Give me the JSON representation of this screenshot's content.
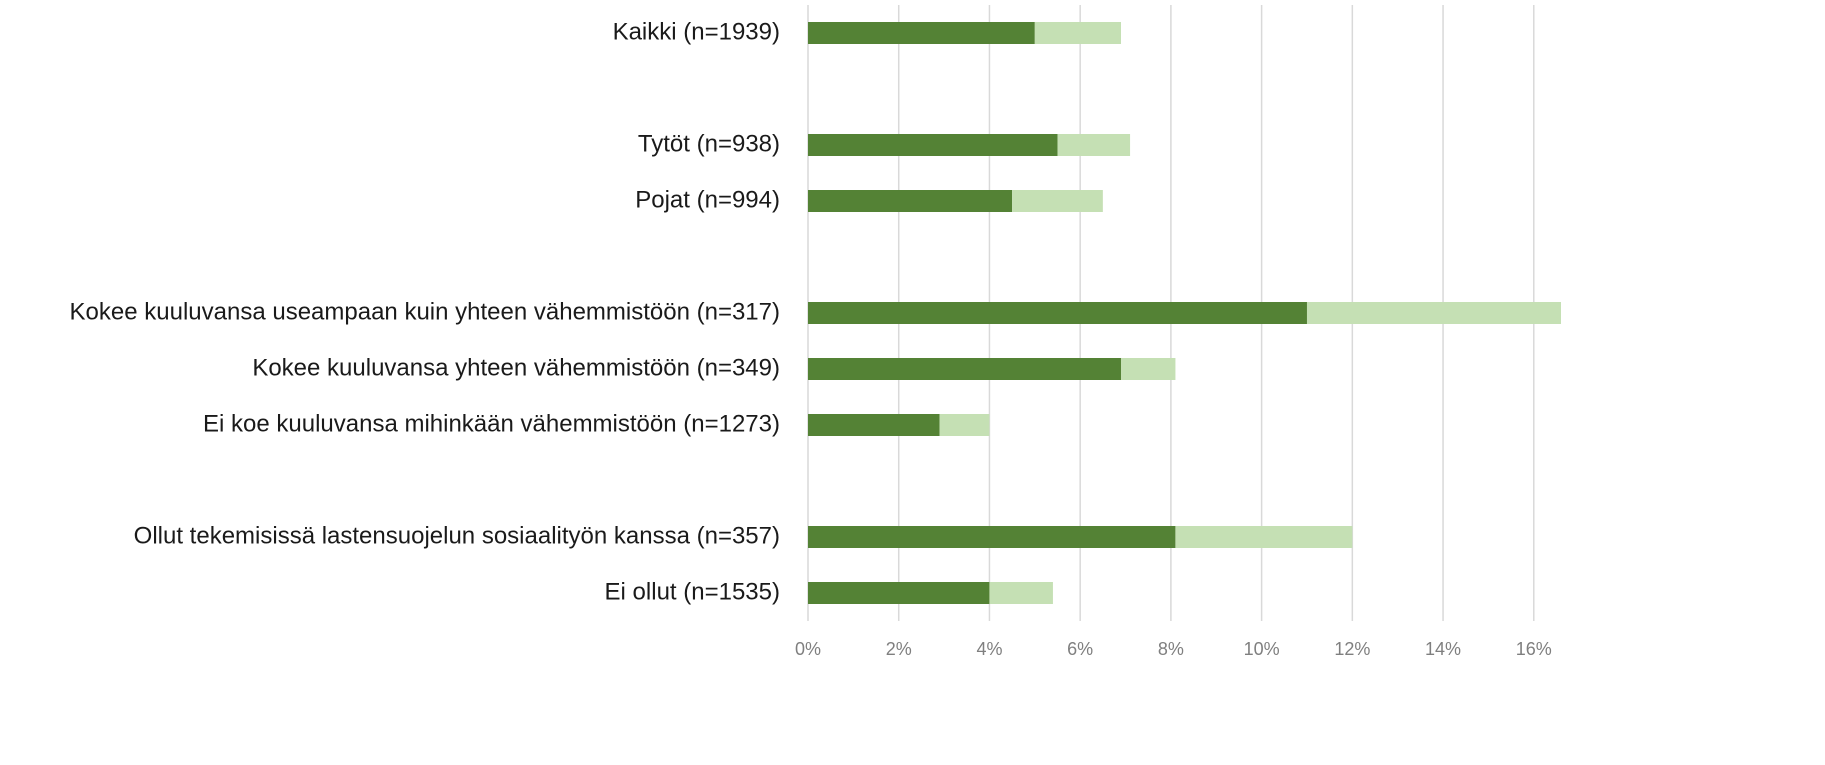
{
  "chart_data": {
    "type": "stacked-barh",
    "categories": [
      "Kaikki (n=1939)",
      null,
      "Tytöt (n=938)",
      "Pojat (n=994)",
      null,
      "Kokee kuuluvansa useampaan kuin yhteen vähemmistöön (n=317)",
      "Kokee kuuluvansa yhteen vähemmistöön (n=349)",
      "Ei koe kuuluvansa mihinkään vähemmistöön (n=1273)",
      null,
      "Ollut tekemisissä lastensuojelun sosiaalityön kanssa (n=357)",
      "Ei ollut (n=1535)"
    ],
    "series": [
      {
        "color": "#548235",
        "values": [
          5.0,
          null,
          5.5,
          4.5,
          null,
          11.0,
          6.9,
          2.9,
          null,
          8.1,
          4.0
        ]
      },
      {
        "color": "#c5e0b4",
        "values": [
          1.9,
          null,
          1.6,
          2.0,
          null,
          5.6,
          1.2,
          1.1,
          null,
          3.9,
          1.4
        ]
      }
    ],
    "xlim": [
      0,
      16.6
    ],
    "xticks": [
      {
        "value": 0,
        "label": "0%"
      },
      {
        "value": 2,
        "label": "2%"
      },
      {
        "value": 4,
        "label": "4%"
      },
      {
        "value": 6,
        "label": "6%"
      },
      {
        "value": 8,
        "label": "8%"
      },
      {
        "value": 10,
        "label": "10%"
      },
      {
        "value": 12,
        "label": "12%"
      },
      {
        "value": 14,
        "label": "14%"
      },
      {
        "value": 16,
        "label": "16%"
      }
    ],
    "grid": true
  }
}
